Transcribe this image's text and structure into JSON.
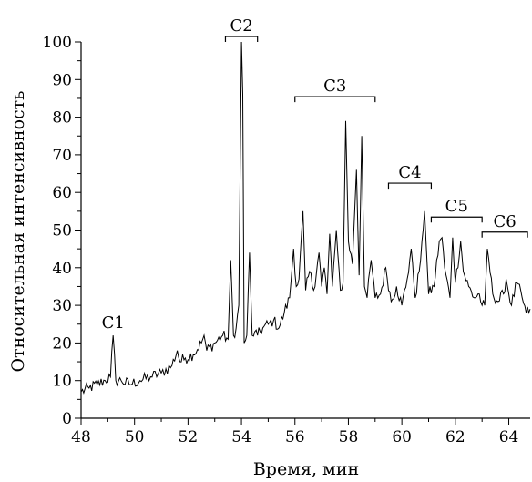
{
  "chart_data": {
    "type": "line",
    "xlabel": "Время, мин",
    "ylabel": "Относительная интенсивность",
    "xlim": [
      48,
      64.8
    ],
    "ylim": [
      0,
      100
    ],
    "xticks": [
      "48",
      "50",
      "52",
      "54",
      "56",
      "58",
      "60",
      "62",
      "64"
    ],
    "yticks": [
      "0",
      "10",
      "20",
      "30",
      "40",
      "50",
      "60",
      "70",
      "80",
      "90",
      "100"
    ],
    "grid": false,
    "series": [
      {
        "color": "#000000",
        "x": [
          48.0,
          48.3,
          48.6,
          48.9,
          49.1,
          49.2,
          49.3,
          49.5,
          49.8,
          50.2,
          50.6,
          51.0,
          51.4,
          51.6,
          51.7,
          51.9,
          52.2,
          52.5,
          52.6,
          52.7,
          53.0,
          53.3,
          53.5,
          53.6,
          53.7,
          53.8,
          53.9,
          54.0,
          54.05,
          54.1,
          54.2,
          54.3,
          54.4,
          54.5,
          54.6,
          54.8,
          55.0,
          55.2,
          55.4,
          55.6,
          55.8,
          55.95,
          56.05,
          56.15,
          56.3,
          56.4,
          56.55,
          56.7,
          56.9,
          57.0,
          57.1,
          57.2,
          57.3,
          57.4,
          57.55,
          57.7,
          57.8,
          57.9,
          58.0,
          58.15,
          58.3,
          58.4,
          58.5,
          58.6,
          58.7,
          58.85,
          59.0,
          59.2,
          59.4,
          59.6,
          59.8,
          60.0,
          60.2,
          60.35,
          60.5,
          60.7,
          60.85,
          61.0,
          61.2,
          61.4,
          61.5,
          61.6,
          61.8,
          61.9,
          62.0,
          62.2,
          62.3,
          62.5,
          62.7,
          62.9,
          63.0,
          63.1,
          63.2,
          63.4,
          63.6,
          63.8,
          63.9,
          64.1,
          64.3,
          64.5,
          64.65,
          64.8
        ],
        "y": [
          7,
          8,
          9,
          10,
          11,
          22,
          10,
          10,
          9,
          10,
          11,
          12,
          14,
          18,
          15,
          16,
          17,
          20,
          22,
          18,
          20,
          22,
          21,
          42,
          22,
          24,
          30,
          100,
          86,
          20,
          22,
          44,
          22,
          23,
          22,
          24,
          25,
          26,
          24,
          28,
          32,
          45,
          35,
          37,
          55,
          34,
          39,
          34,
          44,
          35,
          40,
          33,
          49,
          35,
          50,
          34,
          36,
          79,
          47,
          41,
          66,
          38,
          75,
          35,
          32,
          42,
          32,
          33,
          40,
          31,
          35,
          30,
          37,
          45,
          32,
          42,
          55,
          33,
          35,
          47,
          48,
          40,
          32,
          48,
          36,
          47,
          39,
          35,
          32,
          33,
          30,
          30,
          45,
          33,
          31,
          33,
          37,
          30,
          36,
          32,
          28,
          29
        ]
      }
    ],
    "annotations": [
      {
        "label": "C1",
        "x": 49.2,
        "y": 22,
        "bracket": null
      },
      {
        "label": "C2",
        "x": 54.0,
        "y": 100,
        "bracket": [
          53.4,
          54.6
        ]
      },
      {
        "label": "C3",
        "x": 57.6,
        "y": 84,
        "bracket": [
          56.0,
          59.0
        ]
      },
      {
        "label": "C4",
        "x": 60.3,
        "y": 61,
        "bracket": [
          59.5,
          61.1
        ]
      },
      {
        "label": "C5",
        "x": 62.1,
        "y": 52,
        "bracket": [
          61.1,
          63.0
        ]
      },
      {
        "label": "C6",
        "x": 63.8,
        "y": 48,
        "bracket": [
          63.0,
          64.7
        ]
      }
    ]
  }
}
